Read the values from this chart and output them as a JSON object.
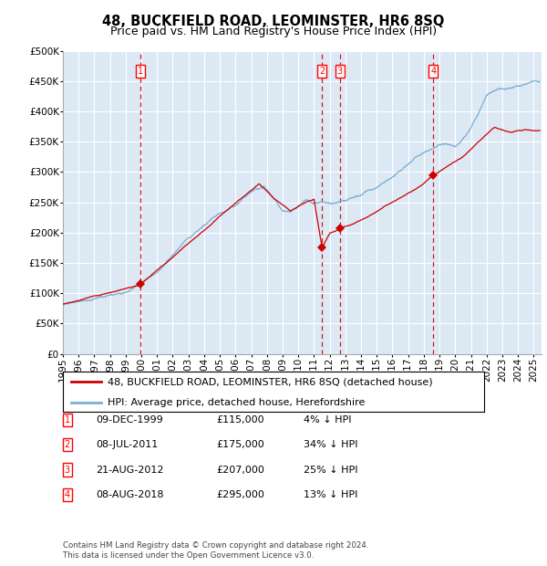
{
  "title": "48, BUCKFIELD ROAD, LEOMINSTER, HR6 8SQ",
  "subtitle": "Price paid vs. HM Land Registry's House Price Index (HPI)",
  "ylim": [
    0,
    500000
  ],
  "yticks": [
    0,
    50000,
    100000,
    150000,
    200000,
    250000,
    300000,
    350000,
    400000,
    450000,
    500000
  ],
  "xlim_start": 1995.0,
  "xlim_end": 2025.5,
  "background_color": "#dce9f5",
  "grid_color": "#ffffff",
  "hpi_color": "#7bafd4",
  "price_color": "#cc0000",
  "dashed_line_color": "#cc0000",
  "marker_color": "#cc0000",
  "legend_label_price": "48, BUCKFIELD ROAD, LEOMINSTER, HR6 8SQ (detached house)",
  "legend_label_hpi": "HPI: Average price, detached house, Herefordshire",
  "transactions": [
    {
      "num": 1,
      "date": "09-DEC-1999",
      "price": 115000,
      "pct": "4%",
      "year": 1999.94
    },
    {
      "num": 2,
      "date": "08-JUL-2011",
      "price": 175000,
      "pct": "34%",
      "year": 2011.52
    },
    {
      "num": 3,
      "date": "21-AUG-2012",
      "price": 207000,
      "pct": "25%",
      "year": 2012.64
    },
    {
      "num": 4,
      "date": "08-AUG-2018",
      "price": 295000,
      "pct": "13%",
      "year": 2018.6
    }
  ],
  "footnote1": "Contains HM Land Registry data © Crown copyright and database right 2024.",
  "footnote2": "This data is licensed under the Open Government Licence v3.0.",
  "title_fontsize": 10.5,
  "subtitle_fontsize": 9,
  "tick_fontsize": 7.5,
  "legend_fontsize": 8,
  "table_fontsize": 8
}
